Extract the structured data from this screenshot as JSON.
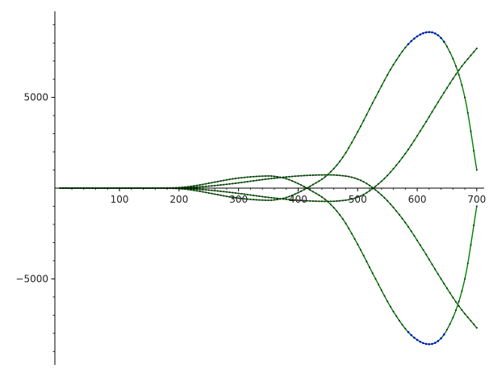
{
  "chart_data": {
    "type": "line",
    "title": "",
    "xlabel": "",
    "ylabel": "",
    "xlim": [
      0,
      705
    ],
    "ylim": [
      -9600,
      9800
    ],
    "grid": false,
    "x_ticks": [
      100,
      200,
      300,
      400,
      500,
      600,
      700
    ],
    "x_tick_labels": [
      "100",
      "200",
      "300",
      "400",
      "500",
      "600",
      "700"
    ],
    "y_ticks": [
      5000,
      -5000
    ],
    "y_tick_labels": [
      "5000",
      "−5000"
    ],
    "y_minor_tick_step": 1000,
    "x_minor_tick_step": 20,
    "line_color": "#008000",
    "marker_color": "#222222",
    "accent_marker_color": "#0000ee",
    "series": [
      {
        "x": [
          0,
          100,
          150,
          200,
          230,
          260,
          290,
          320,
          340,
          350,
          360,
          380,
          400,
          420,
          450,
          475,
          500,
          530,
          560,
          590,
          620,
          650,
          680,
          700
        ],
        "values": [
          0,
          0,
          0,
          30,
          150,
          330,
          510,
          620,
          660,
          670,
          650,
          520,
          250,
          -100,
          -750,
          -1700,
          -3100,
          -5000,
          -6800,
          -8100,
          -8600,
          -7800,
          -5000,
          -1000
        ]
      },
      {
        "x": [
          0,
          100,
          150,
          200,
          230,
          260,
          290,
          320,
          340,
          350,
          360,
          380,
          400,
          420,
          450,
          475,
          500,
          530,
          560,
          590,
          620,
          650,
          680,
          700
        ],
        "values": [
          0,
          0,
          0,
          -30,
          -150,
          -330,
          -510,
          -620,
          -660,
          -670,
          -650,
          -520,
          -250,
          100,
          750,
          1700,
          3100,
          5000,
          6800,
          8100,
          8600,
          7800,
          5000,
          1000
        ]
      },
      {
        "x": [
          0,
          100,
          150,
          200,
          230,
          260,
          300,
          350,
          400,
          430,
          450,
          470,
          490,
          510,
          530,
          550,
          580,
          610,
          640,
          670,
          700
        ],
        "values": [
          0,
          0,
          0,
          15,
          60,
          140,
          290,
          510,
          670,
          720,
          730,
          700,
          600,
          350,
          -100,
          -700,
          -1900,
          -3400,
          -5000,
          -6500,
          -7700
        ]
      },
      {
        "x": [
          0,
          100,
          150,
          200,
          230,
          260,
          300,
          350,
          400,
          430,
          450,
          470,
          490,
          510,
          530,
          550,
          580,
          610,
          640,
          670,
          700
        ],
        "values": [
          0,
          0,
          0,
          -15,
          -60,
          -140,
          -290,
          -510,
          -670,
          -720,
          -730,
          -700,
          -600,
          -350,
          100,
          700,
          1900,
          3400,
          5000,
          6500,
          7700
        ]
      }
    ]
  }
}
